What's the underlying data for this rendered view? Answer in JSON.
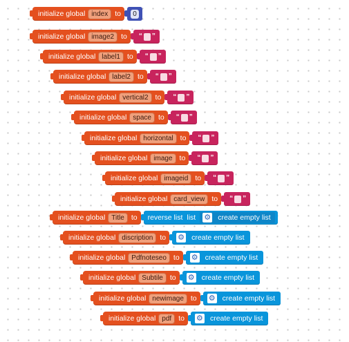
{
  "labels": {
    "initialize_global": "initialize global",
    "to": "to",
    "create_empty_list": "create empty list",
    "reverse_list": "reverse list",
    "list": "list",
    "quote_open": "“",
    "quote_close": "”"
  },
  "blocks": [
    {
      "name": "index",
      "value_type": "number",
      "number": "0"
    },
    {
      "name": "image2",
      "value_type": "text"
    },
    {
      "name": "label1",
      "value_type": "text"
    },
    {
      "name": "label2",
      "value_type": "text"
    },
    {
      "name": "vertical2",
      "value_type": "text"
    },
    {
      "name": "space",
      "value_type": "text"
    },
    {
      "name": "horizontal",
      "value_type": "text"
    },
    {
      "name": "image",
      "value_type": "text"
    },
    {
      "name": "imageid",
      "value_type": "text"
    },
    {
      "name": "card_view",
      "value_type": "text"
    },
    {
      "name": "Title",
      "value_type": "reverse-list"
    },
    {
      "name": "discription",
      "value_type": "empty-list"
    },
    {
      "name": "Pdfnoteseo",
      "value_type": "empty-list"
    },
    {
      "name": "Subtile",
      "value_type": "empty-list"
    },
    {
      "name": "newimage",
      "value_type": "empty-list"
    },
    {
      "name": "pdf",
      "value_type": "empty-list"
    }
  ],
  "colors": {
    "variable_block": "#e4501f",
    "text_block": "#c8245d",
    "math_block": "#3f51b5",
    "list_block": "#0995db"
  },
  "icons": {
    "list_block": "gear-icon"
  }
}
